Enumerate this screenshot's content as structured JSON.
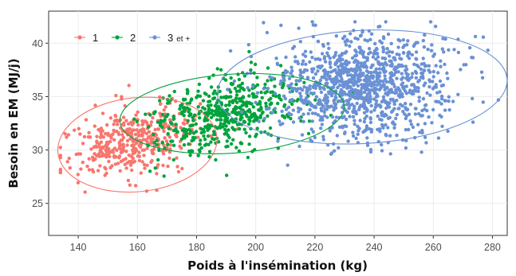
{
  "chart_data": {
    "type": "scatter",
    "title": "",
    "xlabel": "Poids à l'insémination (kg)",
    "ylabel": "Besoin en EM (MJ/j)",
    "xlim": [
      130,
      285
    ],
    "ylim": [
      22,
      43
    ],
    "xticks": [
      140,
      160,
      180,
      200,
      220,
      240,
      260,
      280
    ],
    "yticks": [
      25,
      30,
      35,
      40
    ],
    "grid": true,
    "legend_position": "top-left",
    "series": [
      {
        "name": "1",
        "name_suffix": "",
        "color": "#F8766D",
        "count": 420,
        "x_mean": 157,
        "x_sd": 11,
        "y_mean": 30.8,
        "y_sd": 1.8,
        "corr": 0.35,
        "ellipse": {
          "cx": 160,
          "cy": 30.5,
          "rx": 27,
          "ry": 4.4,
          "angle_deg": -6
        }
      },
      {
        "name": "2",
        "name_suffix": "",
        "color": "#00A33C",
        "count": 520,
        "x_mean": 190,
        "x_sd": 12,
        "y_mean": 33.3,
        "y_sd": 1.8,
        "corr": 0.35,
        "ellipse": {
          "cx": 192,
          "cy": 33.4,
          "rx": 38,
          "ry": 3.7,
          "angle_deg": -4
        }
      },
      {
        "name": "3",
        "name_suffix": "et +",
        "color": "#6A91D4",
        "count": 1100,
        "x_mean": 236,
        "x_sd": 15,
        "y_mean": 36.0,
        "y_sd": 2.4,
        "corr": 0.05,
        "ellipse": {
          "cx": 236,
          "cy": 35.9,
          "rx": 49,
          "ry": 5.3,
          "angle_deg": -3
        }
      }
    ]
  }
}
